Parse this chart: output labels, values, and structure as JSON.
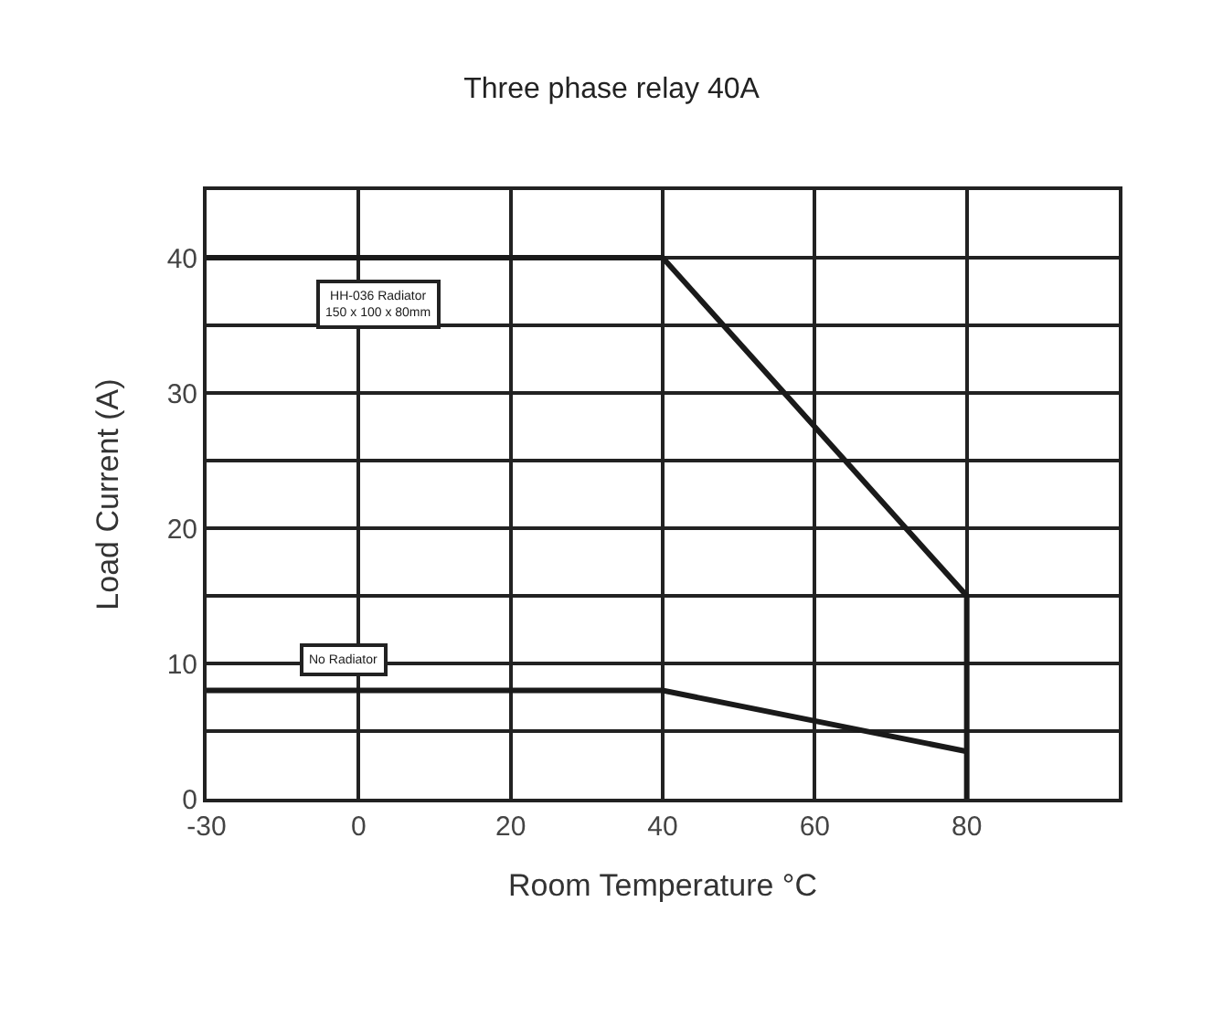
{
  "chart_data": {
    "type": "line",
    "title": "Three phase relay 40A",
    "xlabel": "Room Temperature °C",
    "ylabel": "Load Current (A)",
    "categories": [
      "-30",
      "0",
      "20",
      "40",
      "60",
      "80",
      null
    ],
    "series": [
      {
        "name": "HH-036 Radiator\n150 x 100 x 80mm",
        "color": "#1a1a1a",
        "x": [
          "-30",
          "40",
          "80",
          "80"
        ],
        "values": [
          40,
          40,
          15,
          0
        ]
      },
      {
        "name": "No Radiator",
        "color": "#1a1a1a",
        "x": [
          "-30",
          "40",
          "80"
        ],
        "values": [
          8,
          8,
          3.5
        ]
      }
    ],
    "ylim": [
      0,
      45
    ],
    "yticks": [
      0,
      {
        "value": 5,
        "label": null
      },
      10,
      {
        "value": 15,
        "label": null
      },
      20,
      {
        "value": 25,
        "label": null
      },
      30,
      {
        "value": 35,
        "label": null
      },
      40
    ],
    "grid": true,
    "legend": false,
    "marker": "none",
    "line_style": "solid"
  }
}
